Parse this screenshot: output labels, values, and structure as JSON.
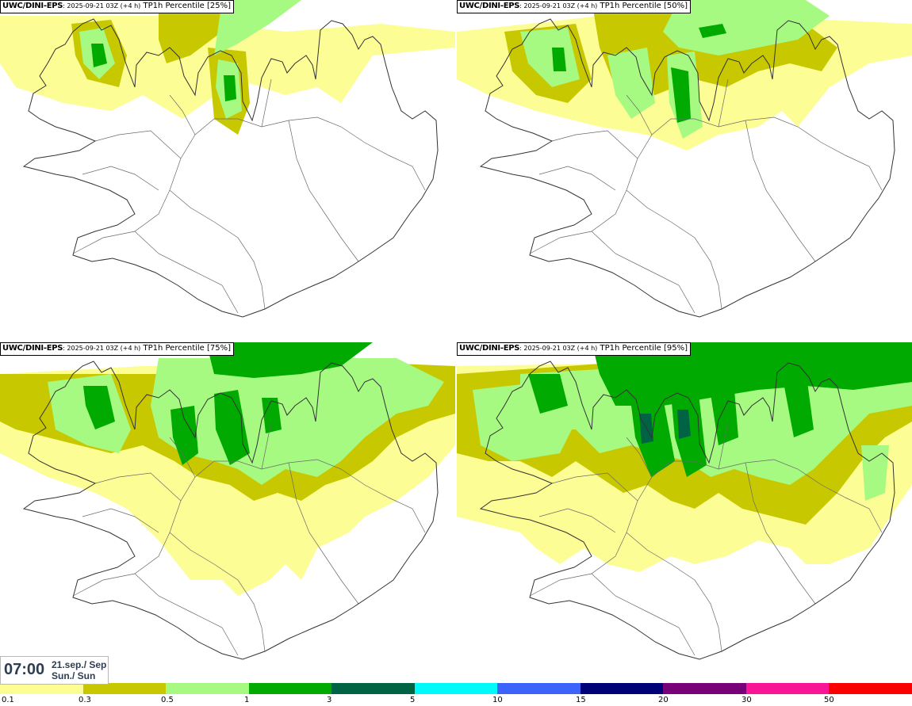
{
  "panels": [
    {
      "source": "UWC/DINI-EPS",
      "run": ": 2025-09-21 03Z (+4 h)",
      "field": " TP1h Percentile [25%]",
      "level": 0
    },
    {
      "source": "UWC/DINI-EPS",
      "run": ": 2025-09-21 03Z (+4 h)",
      "field": " TP1h Percentile [50%]",
      "level": 1
    },
    {
      "source": "UWC/DINI-EPS",
      "run": ": 2025-09-21 03Z (+4 h)",
      "field": " TP1h Percentile [75%]",
      "level": 2
    },
    {
      "source": "UWC/DINI-EPS",
      "run": ": 2025-09-21 03Z (+4 h)",
      "field": " TP1h Percentile [95%]",
      "level": 3
    }
  ],
  "valid_time": {
    "time": "07:00",
    "date_line1": "21.sep./ Sep",
    "date_line2": "Sun./ Sun"
  },
  "legend": {
    "colors": [
      "#fdfd96",
      "#c8c800",
      "#a6fa82",
      "#00aa00",
      "#006444",
      "#00fafa",
      "#3c64fa",
      "#000078",
      "#780078",
      "#fa1496",
      "#fa0000"
    ],
    "labels": [
      "0.1",
      "0.3",
      "0.5",
      "1",
      "3",
      "5",
      "10",
      "15",
      "20",
      "30",
      "50"
    ]
  }
}
